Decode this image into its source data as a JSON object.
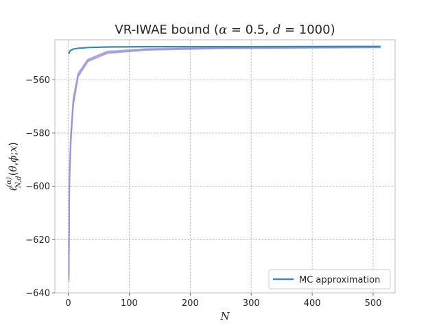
{
  "chart_data": {
    "type": "line",
    "title": "VR-IWAE bound (α = 0.5, d = 1000)",
    "xlabel": "N",
    "ylabel": "ℓ_{N,d}^{(α)}(θ, ϕ; x)",
    "xlim": [
      -22,
      536
    ],
    "ylim": [
      -640,
      -545
    ],
    "x_ticks": [
      0,
      100,
      200,
      300,
      400,
      500
    ],
    "y_ticks": [
      -640,
      -620,
      -600,
      -580,
      -560
    ],
    "grid": true,
    "grid_style": "dashed",
    "legend_position": "lower right",
    "series": [
      {
        "name": "MC approximation",
        "role": "mc",
        "color": "#348abd",
        "x": [
          1,
          2,
          4,
          8,
          16,
          32,
          64,
          128,
          256,
          512
        ],
        "y": [
          -550.3,
          -549.5,
          -549.0,
          -548.5,
          -548.2,
          -547.9,
          -547.7,
          -547.6,
          -547.6,
          -547.5
        ]
      },
      {
        "name": "",
        "role": "bundle",
        "color": "#988ed5",
        "x": [
          1,
          2,
          4,
          8,
          16,
          32,
          64,
          128,
          256,
          512
        ],
        "ys": [
          [
            -636.0,
            -600.0,
            -585.0,
            -570.0,
            -559.0,
            -553.0,
            -550.0,
            -548.8,
            -548.2,
            -547.8
          ],
          [
            -634.0,
            -598.0,
            -583.0,
            -568.0,
            -558.0,
            -552.5,
            -549.5,
            -548.5,
            -548.0,
            -547.8
          ],
          [
            -633.0,
            -596.0,
            -582.0,
            -569.0,
            -558.5,
            -552.8,
            -549.8,
            -548.6,
            -548.1,
            -547.9
          ],
          [
            -631.0,
            -594.0,
            -580.0,
            -567.0,
            -557.5,
            -552.3,
            -549.3,
            -548.4,
            -547.9,
            -547.7
          ],
          [
            -635.0,
            -597.0,
            -584.0,
            -569.5,
            -558.8,
            -553.2,
            -550.1,
            -548.9,
            -548.3,
            -547.9
          ]
        ]
      }
    ]
  }
}
